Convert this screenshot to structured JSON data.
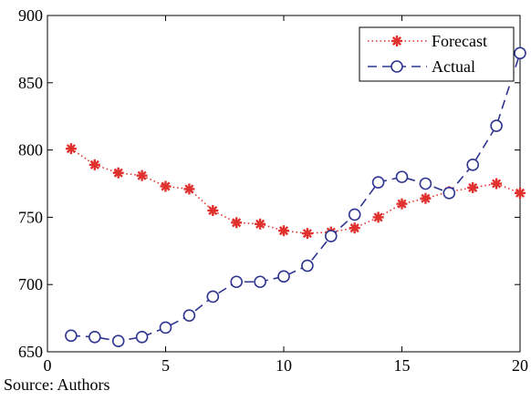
{
  "chart_data": {
    "type": "line",
    "title": "",
    "xlabel": "",
    "ylabel": "",
    "xlim": [
      0,
      20
    ],
    "ylim": [
      650,
      900
    ],
    "x_ticks": [
      0,
      5,
      10,
      15,
      20
    ],
    "y_ticks": [
      650,
      700,
      750,
      800,
      850,
      900
    ],
    "grid": false,
    "legend_position": "top-right",
    "x": [
      1,
      2,
      3,
      4,
      5,
      6,
      7,
      8,
      9,
      10,
      11,
      12,
      13,
      14,
      15,
      16,
      17,
      18,
      19,
      20
    ],
    "series": [
      {
        "name": "Forecast",
        "color": "#e0312e",
        "line_style": "dotted",
        "marker": "star",
        "values": [
          801,
          789,
          783,
          781,
          773,
          771,
          755,
          746,
          745,
          740,
          738,
          739,
          742,
          750,
          760,
          764,
          769,
          772,
          775,
          768
        ]
      },
      {
        "name": "Actual",
        "color": "#2f3590",
        "line_style": "dashed",
        "marker": "circle",
        "values": [
          662,
          661,
          658,
          661,
          668,
          677,
          691,
          702,
          702,
          706,
          714,
          736,
          752,
          776,
          780,
          775,
          768,
          789,
          818,
          872
        ]
      }
    ]
  },
  "caption": "Source: Authors"
}
